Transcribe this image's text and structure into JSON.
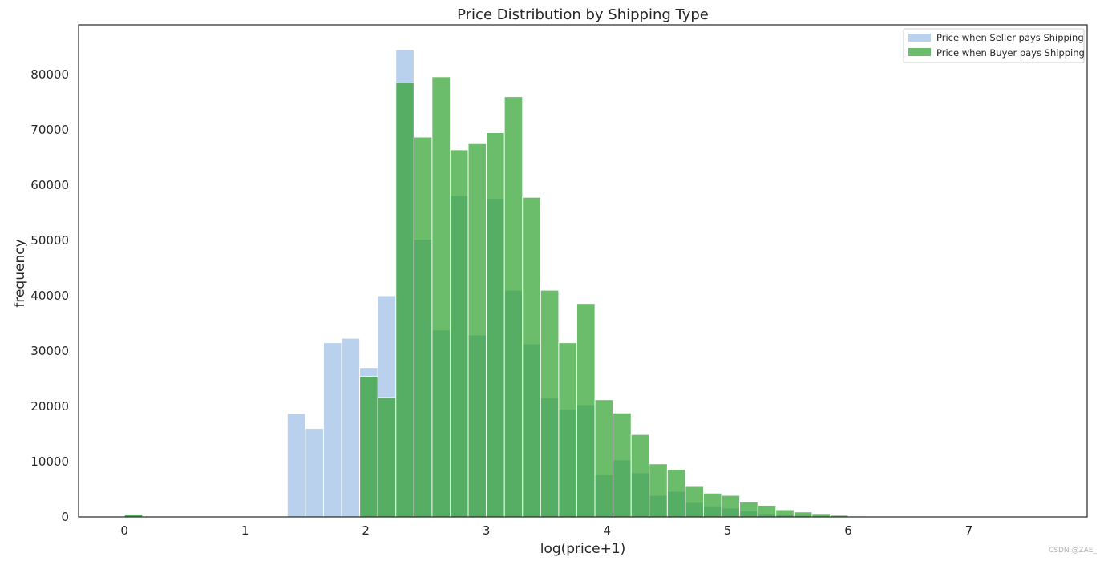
{
  "chart_data": {
    "type": "bar",
    "title": "Price Distribution by Shipping Type",
    "xlabel": "log(price+1)",
    "ylabel": "frequency",
    "xlim": [
      -0.38,
      7.98
    ],
    "ylim": [
      0,
      89000
    ],
    "xticks": [
      0,
      1,
      2,
      3,
      4,
      5,
      6,
      7
    ],
    "yticks": [
      0,
      10000,
      20000,
      30000,
      40000,
      50000,
      60000,
      70000,
      80000
    ],
    "bin_start": 0,
    "bin_width": 0.15,
    "grid": false,
    "legend_position": "top-right",
    "series": [
      {
        "name": "Price when Seller pays Shipping",
        "color": "#8ab2df",
        "values": [
          500,
          0,
          0,
          0,
          0,
          0,
          0,
          0,
          0,
          18700,
          16000,
          31500,
          32300,
          27000,
          40000,
          84500,
          50200,
          33800,
          58100,
          32900,
          57600,
          41000,
          31300,
          21500,
          19500,
          20300,
          7600,
          10300,
          8000,
          3900,
          4600,
          2600,
          2000,
          1600,
          1100,
          600,
          400,
          250,
          150,
          100,
          50,
          30,
          20,
          10,
          5,
          5,
          3,
          2,
          2,
          1,
          0
        ]
      },
      {
        "name": "Price when Buyer pays Shipping",
        "color": "#2ca02c",
        "values": [
          500,
          0,
          0,
          0,
          0,
          0,
          0,
          0,
          0,
          0,
          0,
          0,
          0,
          25400,
          21600,
          78500,
          68700,
          79600,
          66400,
          67500,
          69500,
          76000,
          57800,
          41000,
          31500,
          38600,
          21200,
          18800,
          14900,
          9600,
          8600,
          5500,
          4300,
          3900,
          2700,
          2100,
          1300,
          900,
          600,
          300,
          150,
          80,
          50,
          30,
          15,
          8,
          5,
          3,
          2,
          1,
          0
        ]
      }
    ]
  },
  "watermark": "CSDN @ZAE_"
}
